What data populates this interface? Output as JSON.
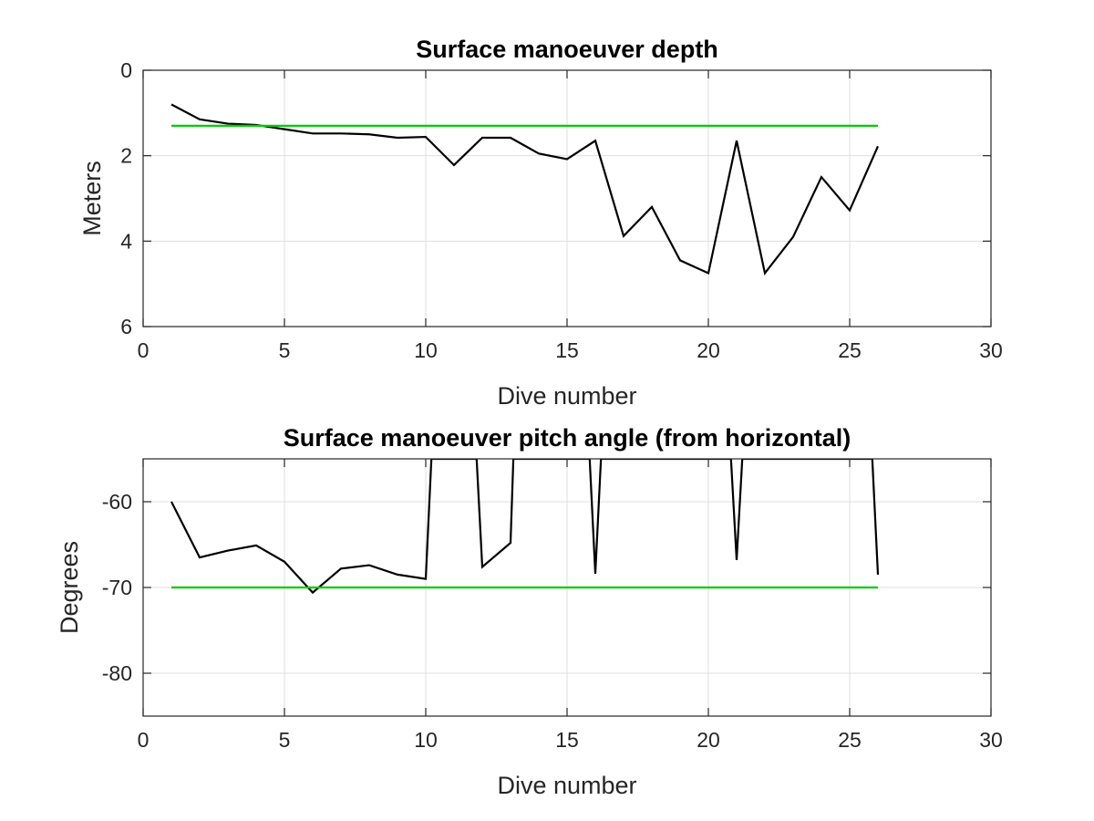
{
  "chart_data": [
    {
      "type": "line",
      "title": "Surface manoeuver depth",
      "xlabel": "Dive number",
      "ylabel": "Meters",
      "xlim": [
        0,
        30
      ],
      "ylim": [
        0,
        6
      ],
      "y_reversed": true,
      "grid": true,
      "xticks": [
        0,
        5,
        10,
        15,
        20,
        25,
        30
      ],
      "yticks": [
        0,
        2,
        4,
        6
      ],
      "colors": {
        "depth": "#000000",
        "reference": "#00cc00"
      },
      "series": [
        {
          "values": [
            {
              "x": 1,
              "y": 0.8
            },
            {
              "x": 2,
              "y": 1.15
            },
            {
              "x": 3,
              "y": 1.25
            },
            {
              "x": 4,
              "y": 1.28
            },
            {
              "x": 5,
              "y": 1.38
            },
            {
              "x": 6,
              "y": 1.48
            },
            {
              "x": 7,
              "y": 1.48
            },
            {
              "x": 8,
              "y": 1.5
            },
            {
              "x": 9,
              "y": 1.58
            },
            {
              "x": 10,
              "y": 1.56
            },
            {
              "x": 11,
              "y": 2.22
            },
            {
              "x": 12,
              "y": 1.58
            },
            {
              "x": 13,
              "y": 1.58
            },
            {
              "x": 14,
              "y": 1.95
            },
            {
              "x": 15,
              "y": 2.08
            },
            {
              "x": 16,
              "y": 1.65
            },
            {
              "x": 17,
              "y": 3.88
            },
            {
              "x": 18,
              "y": 3.2
            },
            {
              "x": 19,
              "y": 4.45
            },
            {
              "x": 20,
              "y": 4.75
            },
            {
              "x": 21,
              "y": 1.65
            },
            {
              "x": 22,
              "y": 4.75
            },
            {
              "x": 23,
              "y": 3.9
            },
            {
              "x": 24,
              "y": 2.5
            },
            {
              "x": 25,
              "y": 3.28
            },
            {
              "x": 26,
              "y": 1.78
            }
          ]
        },
        {
          "values": [
            {
              "x": 1,
              "y": 1.3
            },
            {
              "x": 26,
              "y": 1.3
            }
          ]
        }
      ]
    },
    {
      "type": "line",
      "title": "Surface manoeuver pitch angle (from horizontal)",
      "xlabel": "Dive number",
      "ylabel": "Degrees",
      "xlim": [
        0,
        30
      ],
      "ylim": [
        -85,
        -55
      ],
      "grid": true,
      "xticks": [
        0,
        5,
        10,
        15,
        20,
        25,
        30
      ],
      "yticks": [
        -60,
        -70,
        -80
      ],
      "colors": {
        "pitch": "#000000",
        "reference": "#00cc00"
      },
      "series": [
        {
          "values": [
            {
              "x": 1,
              "y": -60
            },
            {
              "x": 2,
              "y": -66.5
            },
            {
              "x": 3,
              "y": -65.7
            },
            {
              "x": 4,
              "y": -65.1
            },
            {
              "x": 5,
              "y": -67
            },
            {
              "x": 6,
              "y": -70.6
            },
            {
              "x": 7,
              "y": -67.8
            },
            {
              "x": 8,
              "y": -67.4
            },
            {
              "x": 9,
              "y": -68.5
            },
            {
              "x": 10,
              "y": -69
            },
            {
              "x": 10.2,
              "y": -55
            },
            {
              "x": 11.8,
              "y": -55
            },
            {
              "x": 12,
              "y": -67.6
            },
            {
              "x": 13,
              "y": -64.8
            },
            {
              "x": 13.1,
              "y": -55
            },
            {
              "x": 15.8,
              "y": -55
            },
            {
              "x": 16,
              "y": -68.4
            },
            {
              "x": 16.2,
              "y": -55
            },
            {
              "x": 20.8,
              "y": -55
            },
            {
              "x": 21,
              "y": -66.8
            },
            {
              "x": 21.2,
              "y": -55
            },
            {
              "x": 25.8,
              "y": -55
            },
            {
              "x": 26,
              "y": -68.5
            }
          ]
        },
        {
          "values": [
            {
              "x": 1,
              "y": -70
            },
            {
              "x": 26,
              "y": -70
            }
          ]
        }
      ]
    }
  ]
}
